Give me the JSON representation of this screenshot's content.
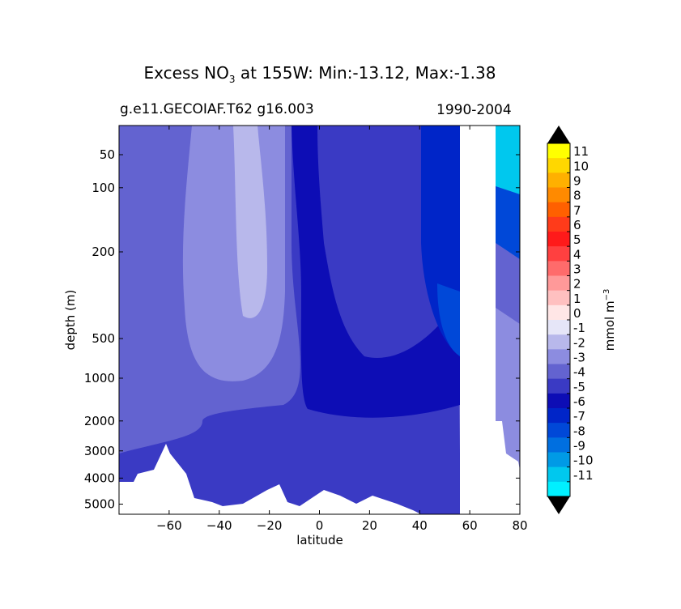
{
  "title": {
    "main": "Excess NO",
    "sub": "3",
    "rest": " at 155W: Min:-13.12, Max:-1.38"
  },
  "subtitle_left": "g.e11.GECOIAF.T62 g16.003",
  "subtitle_right": "1990-2004",
  "chart_data": {
    "type": "heatmap",
    "style": "filled contour section",
    "xlabel": "latitude",
    "ylabel": "depth (m)",
    "xlim": [
      -80,
      80
    ],
    "ylim": [
      5400,
      20
    ],
    "yaxis_inverted": true,
    "yscale": "custom (compressed with depth)",
    "x_ticks": [
      -60,
      -40,
      -20,
      0,
      20,
      40,
      60,
      80
    ],
    "x_tick_labels": [
      "−60",
      "−40",
      "−20",
      "0",
      "20",
      "40",
      "60",
      "80"
    ],
    "y_ticks": [
      50,
      100,
      200,
      500,
      1000,
      2000,
      3000,
      4000,
      5000
    ],
    "y_tick_labels": [
      "50",
      "100",
      "200",
      "500",
      "1000",
      "2000",
      "3000",
      "4000",
      "5000"
    ],
    "min": -13.12,
    "max": -1.38,
    "colorbar": {
      "label": "mmol m",
      "label_sup": "−3",
      "extend": "both",
      "levels": [
        11,
        10,
        9,
        8,
        7,
        6,
        5,
        4,
        3,
        2,
        1,
        0,
        -1,
        -2,
        -3,
        -4,
        -5,
        -6,
        -7,
        -8,
        -9,
        -10,
        -11
      ],
      "level_labels": [
        "11",
        "10",
        "9",
        "8",
        "7",
        "6",
        "5",
        "4",
        "3",
        "2",
        "1",
        "0",
        "-1",
        "-2",
        "-3",
        "-4",
        "-5",
        "-6",
        "-7",
        "-8",
        "-9",
        "-10",
        "-11"
      ],
      "colors": [
        "#ffff00",
        "#ffd700",
        "#ffb000",
        "#ff8a00",
        "#ff6000",
        "#ff3b1a",
        "#ff1a1a",
        "#ff4040",
        "#ff6b6b",
        "#ff9999",
        "#ffc0c0",
        "#ffe6e6",
        "#e6e6f8",
        "#b8b8eb",
        "#8c8ce0",
        "#6363d0",
        "#3a3ac4",
        "#0d0db5",
        "#0025c8",
        "#0048d8",
        "#006fe0",
        "#009ae6",
        "#00c8ee",
        "#00f0ff"
      ],
      "over_color": "#000000",
      "under_color": "#000000"
    }
  }
}
